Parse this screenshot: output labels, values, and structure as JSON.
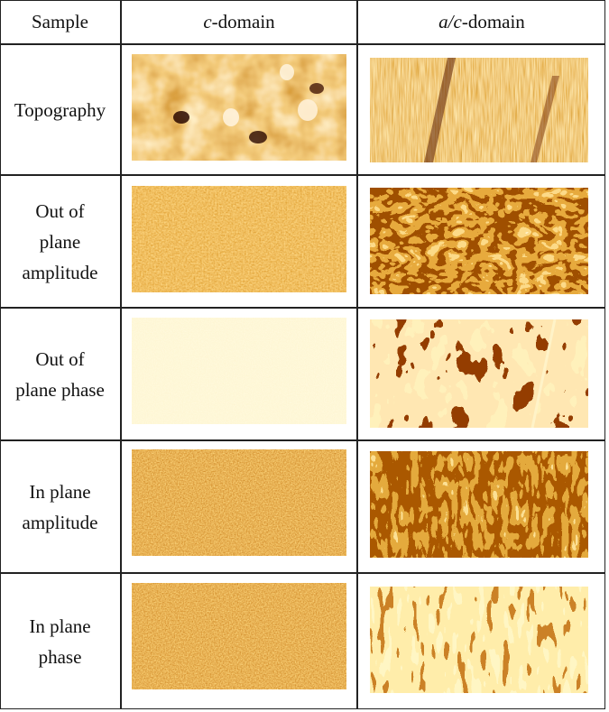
{
  "header": {
    "sample_label": "Sample",
    "col_c_italic": "c",
    "col_c_rest": "-domain",
    "col_ac_italic": "a/c",
    "col_ac_rest": "-domain"
  },
  "rows": [
    {
      "label": "Topography"
    },
    {
      "label": "Out of\nplane\namplitude"
    },
    {
      "label": "Out of\nplane phase"
    },
    {
      "label": "In plane\namplitude"
    },
    {
      "label": "In plane\nphase"
    }
  ],
  "colors": {
    "dark": "#4a1500",
    "mid": "#b85a0c",
    "light": "#f2c35a",
    "pale": "#fdf3b8"
  }
}
